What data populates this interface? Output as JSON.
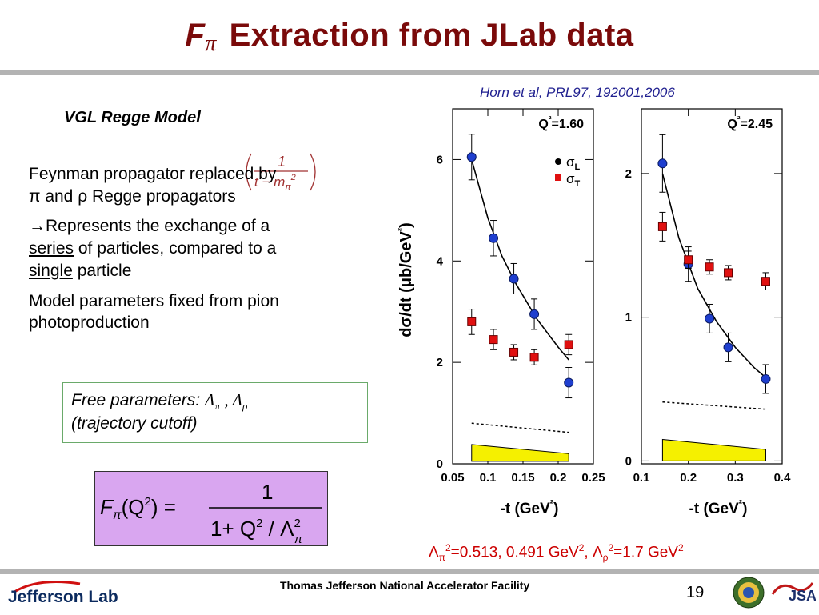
{
  "slide": {
    "title_symbol": "F",
    "title_subscript": "π",
    "title_rest": " Extraction from JLab data",
    "citation": "Horn et al, PRL97, 192001,2006",
    "model_heading": "VGL Regge Model",
    "bullets": {
      "b1_part1": "Feynman propagator replaced by",
      "b1_part2": "π and ρ Regge propagators",
      "b2_arrow": "→",
      "b2_text1": "Represents the exchange of a",
      "b2_underline1": "series",
      "b2_text2": " of particles, compared to a",
      "b2_underline2": "single",
      "b2_text3": " particle",
      "b3": "Model parameters fixed from pion photoproduction"
    },
    "propagator_formula": {
      "numerator": "1",
      "denominator_t": "t",
      "denominator_rest": " − m",
      "denominator_sub": "π",
      "denominator_sup": "2"
    },
    "free_params": {
      "label": "Free parameters: ",
      "symbols": "Λ",
      "sub_pi": "π",
      "sep": " , Λ",
      "sub_rho": "ρ",
      "line2": "(trajectory cutoff)"
    },
    "main_formula": {
      "lhs": "F",
      "lhs_sub": "π",
      "lhs_arg": "(Q",
      "lhs_sup": "2",
      "lhs_close": ") =",
      "numerator": "1",
      "den_1": "1+ Q",
      "den_sup": "2",
      "den_2": " / Λ",
      "den_sup2": "2",
      "den_sub": "π"
    },
    "lambda_values": {
      "l1": "Λ",
      "l1_sub": "π",
      "l1_sup": "2",
      "l1_val": "=0.513, 0.491 GeV",
      "l1_unit_sup": "2",
      "l2": ", Λ",
      "l2_sub": "ρ",
      "l2_sup": "2",
      "l2_val": "=1.7 GeV",
      "l2_unit_sup": "2"
    },
    "footer": {
      "org": "Thomas Jefferson National Accelerator Facility",
      "page": "19",
      "logo_text": "Jefferson Lab",
      "jsa_text": "JSA"
    }
  },
  "chart_data": [
    {
      "type": "scatter",
      "panel_label": "Q²=1.60",
      "ylabel": "dσ/dt (μb/GeV²)",
      "xlabel": "-t (GeV²)",
      "xlim": [
        0.05,
        0.25
      ],
      "ylim": [
        0,
        7
      ],
      "xticks": [
        "0.05",
        "0.1",
        "0.15",
        "0.2",
        "0.25"
      ],
      "yticks": [
        "0",
        "2",
        "4",
        "6"
      ],
      "legend": [
        "σL",
        "σT"
      ],
      "series": [
        {
          "name": "σL",
          "color": "#1f3fcf",
          "marker": "circle",
          "x": [
            0.077,
            0.108,
            0.137,
            0.166,
            0.215
          ],
          "y": [
            6.05,
            4.45,
            3.65,
            2.95,
            1.6
          ],
          "err": [
            0.45,
            0.35,
            0.3,
            0.3,
            0.3
          ]
        },
        {
          "name": "σT",
          "color": "#e01010",
          "marker": "square",
          "x": [
            0.077,
            0.108,
            0.137,
            0.166,
            0.215
          ],
          "y": [
            2.8,
            2.45,
            2.2,
            2.1,
            2.35
          ],
          "err": [
            0.25,
            0.2,
            0.15,
            0.15,
            0.2
          ]
        }
      ],
      "curve": {
        "x": [
          0.077,
          0.1,
          0.12,
          0.14,
          0.17,
          0.2,
          0.215
        ],
        "y": [
          6.0,
          4.85,
          4.1,
          3.55,
          2.85,
          2.3,
          2.05
        ]
      },
      "dashed": {
        "x": [
          0.077,
          0.215
        ],
        "y": [
          0.8,
          0.62
        ]
      },
      "band": {
        "x": [
          0.077,
          0.215
        ],
        "upper": [
          0.38,
          0.2
        ],
        "lower": [
          0.05,
          0.05
        ]
      }
    },
    {
      "type": "scatter",
      "panel_label": "Q²=2.45",
      "xlabel": "-t (GeV²)",
      "xlim": [
        0.1,
        0.4
      ],
      "ylim": [
        -0.02,
        2.45
      ],
      "xticks": [
        "0.1",
        "0.2",
        "0.3",
        "0.4"
      ],
      "yticks": [
        "0",
        "1",
        "2"
      ],
      "series": [
        {
          "name": "σL",
          "color": "#1f3fcf",
          "marker": "circle",
          "x": [
            0.145,
            0.2,
            0.245,
            0.285,
            0.365
          ],
          "y": [
            2.07,
            1.37,
            0.99,
            0.79,
            0.57
          ],
          "err": [
            0.2,
            0.12,
            0.1,
            0.1,
            0.1
          ]
        },
        {
          "name": "σT",
          "color": "#e01010",
          "marker": "square",
          "x": [
            0.145,
            0.2,
            0.245,
            0.285,
            0.365
          ],
          "y": [
            1.63,
            1.4,
            1.35,
            1.31,
            1.25
          ],
          "err": [
            0.1,
            0.06,
            0.05,
            0.05,
            0.06
          ]
        }
      ],
      "curve": {
        "x": [
          0.145,
          0.18,
          0.22,
          0.26,
          0.3,
          0.34,
          0.365
        ],
        "y": [
          2.0,
          1.55,
          1.2,
          0.97,
          0.79,
          0.65,
          0.58
        ]
      },
      "dashed": {
        "x": [
          0.145,
          0.365
        ],
        "y": [
          0.41,
          0.36
        ]
      },
      "band": {
        "x": [
          0.145,
          0.365
        ],
        "upper": [
          0.15,
          0.08
        ],
        "lower": [
          0.0,
          0.0
        ]
      }
    }
  ]
}
